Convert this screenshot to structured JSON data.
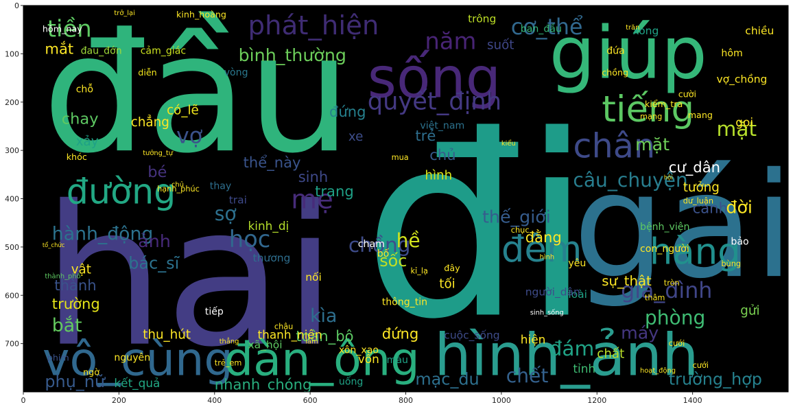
{
  "chart_data": {
    "type": "wordcloud",
    "title": "",
    "xlabel": "",
    "ylabel": "",
    "background": "#000000",
    "axes_frame_color": "#000000",
    "xlim": [
      0,
      1600
    ],
    "ylim": [
      800,
      0
    ],
    "x_ticks": [
      0,
      200,
      400,
      600,
      800,
      1000,
      1200,
      1400
    ],
    "y_ticks": [
      0,
      100,
      200,
      300,
      400,
      500,
      600,
      700
    ],
    "x_tick_labels": [
      "0",
      "200",
      "400",
      "600",
      "800",
      "1000",
      "1200",
      "1400"
    ],
    "y_tick_labels": [
      "0",
      "100",
      "200",
      "300",
      "400",
      "500",
      "600",
      "700"
    ],
    "palette": "viridis",
    "words": [
      {
        "text": "đầu",
        "x": 40,
        "y": 300,
        "size": 340,
        "color": "#2fb47c"
      },
      {
        "text": "hai",
        "x": 40,
        "y": 700,
        "size": 400,
        "color": "#433d84"
      },
      {
        "text": "đi",
        "x": 710,
        "y": 640,
        "size": 520,
        "color": "#1e9c89"
      },
      {
        "text": "gái",
        "x": 1150,
        "y": 560,
        "size": 300,
        "color": "#2c718e"
      },
      {
        "text": "giúp",
        "x": 1100,
        "y": 150,
        "size": 150,
        "color": "#35b779"
      },
      {
        "text": "sống",
        "x": 720,
        "y": 190,
        "size": 115,
        "color": "#482878"
      },
      {
        "text": "hình_ảnh",
        "x": 860,
        "y": 765,
        "size": 120,
        "color": "#2a9d8f"
      },
      {
        "text": "vô_cùng",
        "x": 40,
        "y": 765,
        "size": 95,
        "color": "#30688e"
      },
      {
        "text": "đàn_ông",
        "x": 420,
        "y": 765,
        "size": 95,
        "color": "#29af7f"
      },
      {
        "text": "phát_hiện",
        "x": 470,
        "y": 60,
        "size": 55,
        "color": "#3f2c74"
      },
      {
        "text": "tiếng",
        "x": 1210,
        "y": 240,
        "size": 75,
        "color": "#5cc863"
      },
      {
        "text": "chân",
        "x": 1150,
        "y": 315,
        "size": 70,
        "color": "#3e4a89"
      },
      {
        "text": "hàng",
        "x": 1310,
        "y": 535,
        "size": 75,
        "color": "#21908d"
      },
      {
        "text": "đêm",
        "x": 1000,
        "y": 530,
        "size": 75,
        "color": "#26828e"
      },
      {
        "text": "đường",
        "x": 90,
        "y": 410,
        "size": 72,
        "color": "#22a884"
      },
      {
        "text": "quyết_định",
        "x": 720,
        "y": 215,
        "size": 50,
        "color": "#443983"
      },
      {
        "text": "năm",
        "x": 840,
        "y": 90,
        "size": 48,
        "color": "#482475"
      },
      {
        "text": "tiền",
        "x": 50,
        "y": 65,
        "size": 48,
        "color": "#5ec962"
      },
      {
        "text": "cơ_thể",
        "x": 1020,
        "y": 60,
        "size": 45,
        "color": "#31688e"
      },
      {
        "text": "bình_thường",
        "x": 450,
        "y": 115,
        "size": 36,
        "color": "#6ccd5a"
      },
      {
        "text": "mặt",
        "x": 1450,
        "y": 270,
        "size": 42,
        "color": "#b5de2b"
      },
      {
        "text": "chồng",
        "x": 680,
        "y": 510,
        "size": 42,
        "color": "#3e4c8a"
      },
      {
        "text": "câu_chuyện",
        "x": 1150,
        "y": 375,
        "size": 40,
        "color": "#287d8e"
      },
      {
        "text": "thế_giới",
        "x": 960,
        "y": 450,
        "size": 36,
        "color": "#365c8d"
      },
      {
        "text": "hành_động",
        "x": 60,
        "y": 485,
        "size": 38,
        "color": "#2c728e"
      },
      {
        "text": "mẹ",
        "x": 560,
        "y": 420,
        "size": 55,
        "color": "#472c7a"
      },
      {
        "text": "học",
        "x": 430,
        "y": 500,
        "size": 48,
        "color": "#31678e"
      },
      {
        "text": "gia_đình",
        "x": 1250,
        "y": 605,
        "size": 45,
        "color": "#404688"
      },
      {
        "text": "phòng",
        "x": 1300,
        "y": 660,
        "size": 40,
        "color": "#3fbc73"
      },
      {
        "text": "đám",
        "x": 1100,
        "y": 725,
        "size": 42,
        "color": "#20a386"
      },
      {
        "text": "chết",
        "x": 1010,
        "y": 780,
        "size": 40,
        "color": "#34618d"
      },
      {
        "text": "mạc_du",
        "x": 820,
        "y": 785,
        "size": 34,
        "color": "#2d708e"
      },
      {
        "text": "phụ_nữ",
        "x": 45,
        "y": 790,
        "size": 34,
        "color": "#375a8c"
      },
      {
        "text": "trường_hợp",
        "x": 1350,
        "y": 785,
        "size": 34,
        "color": "#26818e"
      },
      {
        "text": "kìa",
        "x": 600,
        "y": 655,
        "size": 38,
        "color": "#2e6f8e"
      },
      {
        "text": "sốc",
        "x": 745,
        "y": 540,
        "size": 34,
        "color": "#c2df23"
      },
      {
        "text": "hề",
        "x": 780,
        "y": 500,
        "size": 40,
        "color": "#d0e11c"
      },
      {
        "text": "chay",
        "x": 80,
        "y": 245,
        "size": 32,
        "color": "#5ec962"
      },
      {
        "text": "vợ",
        "x": 320,
        "y": 285,
        "size": 45,
        "color": "#3b528b"
      },
      {
        "text": "bé",
        "x": 260,
        "y": 355,
        "size": 32,
        "color": "#46337f"
      },
      {
        "text": "ảnh",
        "x": 240,
        "y": 500,
        "size": 36,
        "color": "#472a7a"
      },
      {
        "text": "sợ",
        "x": 400,
        "y": 445,
        "size": 40,
        "color": "#2d708e"
      },
      {
        "text": "bác_sĩ",
        "x": 220,
        "y": 545,
        "size": 34,
        "color": "#2c728e"
      },
      {
        "text": "thành",
        "x": 65,
        "y": 590,
        "size": 30,
        "color": "#3a538b"
      },
      {
        "text": "trường",
        "x": 60,
        "y": 628,
        "size": 30,
        "color": "#e5e419"
      },
      {
        "text": "bắt",
        "x": 60,
        "y": 675,
        "size": 38,
        "color": "#63cb5f"
      },
      {
        "text": "đứng",
        "x": 750,
        "y": 690,
        "size": 30,
        "color": "#fde725"
      },
      {
        "text": "toàn_bộ",
        "x": 570,
        "y": 695,
        "size": 30,
        "color": "#5cc863"
      },
      {
        "text": "máy",
        "x": 1250,
        "y": 690,
        "size": 36,
        "color": "#453781"
      },
      {
        "text": "chất",
        "x": 1200,
        "y": 730,
        "size": 26,
        "color": "#b8de29"
      },
      {
        "text": "nhanh_chóng",
        "x": 400,
        "y": 795,
        "size": 30,
        "color": "#29af7f"
      },
      {
        "text": "mặt",
        "x": 1280,
        "y": 300,
        "size": 36,
        "color": "#6ece58"
      },
      {
        "text": "cư_dân",
        "x": 1350,
        "y": 345,
        "size": 30,
        "color": "#ffffff"
      },
      {
        "text": "trang",
        "x": 610,
        "y": 395,
        "size": 30,
        "color": "#1fa187"
      },
      {
        "text": "sinh",
        "x": 575,
        "y": 365,
        "size": 30,
        "color": "#3e4989"
      },
      {
        "text": "trẻ",
        "x": 820,
        "y": 280,
        "size": 30,
        "color": "#2e6e8e"
      },
      {
        "text": "hình",
        "x": 840,
        "y": 360,
        "size": 26,
        "color": "#d8e219"
      },
      {
        "text": "chủ",
        "x": 850,
        "y": 320,
        "size": 30,
        "color": "#375b8d"
      },
      {
        "text": "mắt",
        "x": 45,
        "y": 100,
        "size": 30,
        "color": "#fde725"
      },
      {
        "text": "đau_đớn",
        "x": 120,
        "y": 100,
        "size": 20,
        "color": "#9fda3a"
      },
      {
        "text": "cảm_giác",
        "x": 245,
        "y": 100,
        "size": 20,
        "color": "#cae11f"
      },
      {
        "text": "chẳng",
        "x": 225,
        "y": 250,
        "size": 26,
        "color": "#fde725"
      },
      {
        "text": "có_lẽ",
        "x": 300,
        "y": 225,
        "size": 26,
        "color": "#f1e51d"
      },
      {
        "text": "xảy",
        "x": 110,
        "y": 290,
        "size": 26,
        "color": "#1fa187"
      },
      {
        "text": "kinh_dị",
        "x": 470,
        "y": 465,
        "size": 24,
        "color": "#b5de2b"
      },
      {
        "text": "kinh_hoàng",
        "x": 320,
        "y": 25,
        "size": 18,
        "color": "#fde725"
      },
      {
        "text": "trông",
        "x": 930,
        "y": 35,
        "size": 22,
        "color": "#bddf26"
      },
      {
        "text": "ban_đầu",
        "x": 1040,
        "y": 55,
        "size": 20,
        "color": "#35b779"
      },
      {
        "text": "xong",
        "x": 1275,
        "y": 60,
        "size": 22,
        "color": "#20a386"
      },
      {
        "text": "chiều",
        "x": 1510,
        "y": 60,
        "size": 22,
        "color": "#fde725"
      },
      {
        "text": "suốt",
        "x": 970,
        "y": 90,
        "size": 26,
        "color": "#3f4788"
      },
      {
        "text": "hôm_nay",
        "x": 40,
        "y": 55,
        "size": 18,
        "color": "#ffffff"
      },
      {
        "text": "vòng",
        "x": 420,
        "y": 145,
        "size": 20,
        "color": "#2a788e"
      },
      {
        "text": "chỗ",
        "x": 110,
        "y": 180,
        "size": 20,
        "color": "#fde725"
      },
      {
        "text": "diễn",
        "x": 240,
        "y": 145,
        "size": 18,
        "color": "#f1e51d"
      },
      {
        "text": "khóc",
        "x": 90,
        "y": 320,
        "size": 18,
        "color": "#fde725"
      },
      {
        "text": "thể_này",
        "x": 460,
        "y": 335,
        "size": 30,
        "color": "#3a548c"
      },
      {
        "text": "xe",
        "x": 680,
        "y": 280,
        "size": 26,
        "color": "#3d4d8a"
      },
      {
        "text": "đứng",
        "x": 640,
        "y": 230,
        "size": 30,
        "color": "#26818e"
      },
      {
        "text": "trai",
        "x": 430,
        "y": 410,
        "size": 22,
        "color": "#3e4989"
      },
      {
        "text": "thay",
        "x": 390,
        "y": 380,
        "size": 20,
        "color": "#2e6f8e"
      },
      {
        "text": "vật",
        "x": 100,
        "y": 555,
        "size": 26,
        "color": "#fde725"
      },
      {
        "text": "thu_hút",
        "x": 250,
        "y": 690,
        "size": 26,
        "color": "#fde725"
      },
      {
        "text": "tiếp",
        "x": 380,
        "y": 640,
        "size": 20,
        "color": "#ffffff"
      },
      {
        "text": "thanh_niên",
        "x": 490,
        "y": 690,
        "size": 24,
        "color": "#fde725"
      },
      {
        "text": "xã_hội",
        "x": 470,
        "y": 710,
        "size": 22,
        "color": "#5ec962"
      },
      {
        "text": "nguyên",
        "x": 190,
        "y": 735,
        "size": 20,
        "color": "#fde725"
      },
      {
        "text": "kết_quả",
        "x": 190,
        "y": 790,
        "size": 24,
        "color": "#22a884"
      },
      {
        "text": "vốn",
        "x": 700,
        "y": 740,
        "size": 24,
        "color": "#fde725"
      },
      {
        "text": "màu",
        "x": 760,
        "y": 740,
        "size": 20,
        "color": "#20a386"
      },
      {
        "text": "uống",
        "x": 660,
        "y": 785,
        "size": 20,
        "color": "#20a386"
      },
      {
        "text": "ngờ",
        "x": 125,
        "y": 765,
        "size": 18,
        "color": "#fde725"
      },
      {
        "text": "phim",
        "x": 50,
        "y": 735,
        "size": 18,
        "color": "#3b528b"
      },
      {
        "text": "hiện",
        "x": 1040,
        "y": 700,
        "size": 24,
        "color": "#fde725"
      },
      {
        "text": "gọi",
        "x": 1490,
        "y": 250,
        "size": 24,
        "color": "#fde725"
      },
      {
        "text": "đời",
        "x": 1470,
        "y": 430,
        "size": 36,
        "color": "#fde725"
      },
      {
        "text": "cảnh",
        "x": 1400,
        "y": 430,
        "size": 30,
        "color": "#3b528b"
      },
      {
        "text": "tưởng",
        "x": 1380,
        "y": 385,
        "size": 26,
        "color": "#fde725"
      },
      {
        "text": "bệnh_viện",
        "x": 1290,
        "y": 465,
        "size": 20,
        "color": "#5ec962"
      },
      {
        "text": "bảo",
        "x": 1480,
        "y": 495,
        "size": 20,
        "color": "#ffffff"
      },
      {
        "text": "sự_thật",
        "x": 1210,
        "y": 580,
        "size": 28,
        "color": "#fde725"
      },
      {
        "text": "gửi",
        "x": 1500,
        "y": 640,
        "size": 26,
        "color": "#7ad151"
      },
      {
        "text": "đằng",
        "x": 1050,
        "y": 490,
        "size": 30,
        "color": "#fde725"
      },
      {
        "text": "tỉnh",
        "x": 1150,
        "y": 760,
        "size": 24,
        "color": "#3fbc73"
      },
      {
        "text": "loài",
        "x": 1140,
        "y": 605,
        "size": 22,
        "color": "#20a386"
      },
      {
        "text": "yêu",
        "x": 1140,
        "y": 540,
        "size": 20,
        "color": "#fde725"
      },
      {
        "text": "cười",
        "x": 1370,
        "y": 190,
        "size": 18,
        "color": "#fde725"
      },
      {
        "text": "chồng",
        "x": 1210,
        "y": 145,
        "size": 18,
        "color": "#fde725"
      },
      {
        "text": "vợ_chồng",
        "x": 1450,
        "y": 160,
        "size": 22,
        "color": "#fde725"
      },
      {
        "text": "kiểm_tra",
        "x": 1300,
        "y": 210,
        "size": 18,
        "color": "#fde725"
      },
      {
        "text": "hôm",
        "x": 1460,
        "y": 105,
        "size": 20,
        "color": "#fde725"
      },
      {
        "text": "đứa",
        "x": 1220,
        "y": 100,
        "size": 20,
        "color": "#fde725"
      },
      {
        "text": "việt_nam",
        "x": 830,
        "y": 255,
        "size": 20,
        "color": "#2c728e"
      },
      {
        "text": "thông_tin",
        "x": 750,
        "y": 620,
        "size": 20,
        "color": "#fde725"
      },
      {
        "text": "cuộc_sống",
        "x": 880,
        "y": 690,
        "size": 22,
        "color": "#3e4c8a"
      },
      {
        "text": "con_người",
        "x": 1290,
        "y": 510,
        "size": 20,
        "color": "#fde725"
      },
      {
        "text": "tối",
        "x": 870,
        "y": 585,
        "size": 26,
        "color": "#fde725"
      },
      {
        "text": "thương",
        "x": 480,
        "y": 530,
        "size": 22,
        "color": "#2e6e8e"
      },
      {
        "text": "nối",
        "x": 590,
        "y": 570,
        "size": 22,
        "color": "#fde725"
      },
      {
        "text": "xôn_xao",
        "x": 660,
        "y": 720,
        "size": 20,
        "color": "#fde725"
      },
      {
        "text": "người_dân",
        "x": 1050,
        "y": 600,
        "size": 22,
        "color": "#3e4c8a"
      },
      {
        "text": "trẻ_em",
        "x": 400,
        "y": 745,
        "size": 16,
        "color": "#fde725"
      },
      {
        "text": "mang",
        "x": 1390,
        "y": 233,
        "size": 18,
        "color": "#fde725"
      },
      {
        "text": "dư_luận",
        "x": 1380,
        "y": 410,
        "size": 16,
        "color": "#fde725"
      },
      {
        "text": "chạm",
        "x": 700,
        "y": 500,
        "size": 20,
        "color": "#ffffff"
      },
      {
        "text": "bố",
        "x": 740,
        "y": 520,
        "size": 20,
        "color": "#fde725"
      },
      {
        "text": "tưởng_tự",
        "x": 250,
        "y": 310,
        "size": 14,
        "color": "#fde725"
      },
      {
        "text": "chủ",
        "x": 310,
        "y": 375,
        "size": 14,
        "color": "#fde725"
      },
      {
        "text": "hạnh_phúc",
        "x": 280,
        "y": 385,
        "size": 16,
        "color": "#fde725"
      },
      {
        "text": "mua",
        "x": 770,
        "y": 320,
        "size": 16,
        "color": "#fde725"
      },
      {
        "text": "thâm",
        "x": 1300,
        "y": 610,
        "size": 16,
        "color": "#fde725"
      },
      {
        "text": "trăn",
        "x": 1260,
        "y": 50,
        "size": 14,
        "color": "#fde725"
      },
      {
        "text": "trở_lại",
        "x": 190,
        "y": 20,
        "size": 14,
        "color": "#fde725"
      },
      {
        "text": "tổ_chức",
        "x": 40,
        "y": 500,
        "size": 12,
        "color": "#fde725"
      },
      {
        "text": "bùng",
        "x": 1460,
        "y": 540,
        "size": 16,
        "color": "#fde725"
      },
      {
        "text": "tròn",
        "x": 1340,
        "y": 580,
        "size": 16,
        "color": "#fde725"
      },
      {
        "text": "lâm",
        "x": 590,
        "y": 700,
        "size": 14,
        "color": "#fde725"
      },
      {
        "text": "sinh_sống",
        "x": 1060,
        "y": 640,
        "size": 14,
        "color": "#ffffff"
      },
      {
        "text": "kiểu",
        "x": 1000,
        "y": 290,
        "size": 14,
        "color": "#fde725"
      },
      {
        "text": "cưới",
        "x": 1350,
        "y": 705,
        "size": 16,
        "color": "#fde725"
      },
      {
        "text": "cưới",
        "x": 1400,
        "y": 750,
        "size": 16,
        "color": "#fde725"
      },
      {
        "text": "thành_phố",
        "x": 45,
        "y": 565,
        "size": 14,
        "color": "#5ec962"
      },
      {
        "text": "hình",
        "x": 1080,
        "y": 525,
        "size": 14,
        "color": "#fde725"
      },
      {
        "text": "kỉ_lạ",
        "x": 810,
        "y": 555,
        "size": 16,
        "color": "#fde725"
      },
      {
        "text": "đây",
        "x": 880,
        "y": 550,
        "size": 18,
        "color": "#fde725"
      },
      {
        "text": "chục",
        "x": 1020,
        "y": 470,
        "size": 16,
        "color": "#fde725"
      },
      {
        "text": "châu",
        "x": 525,
        "y": 670,
        "size": 16,
        "color": "#fde725"
      },
      {
        "text": "thẳng",
        "x": 410,
        "y": 700,
        "size": 14,
        "color": "#fde725"
      },
      {
        "text": "hoạt_động",
        "x": 1290,
        "y": 760,
        "size": 14,
        "color": "#fde725"
      },
      {
        "text": "mạng",
        "x": 1290,
        "y": 235,
        "size": 16,
        "color": "#fde725"
      },
      {
        "text": "hội",
        "x": 1340,
        "y": 360,
        "size": 12,
        "color": "#fde725"
      }
    ]
  }
}
